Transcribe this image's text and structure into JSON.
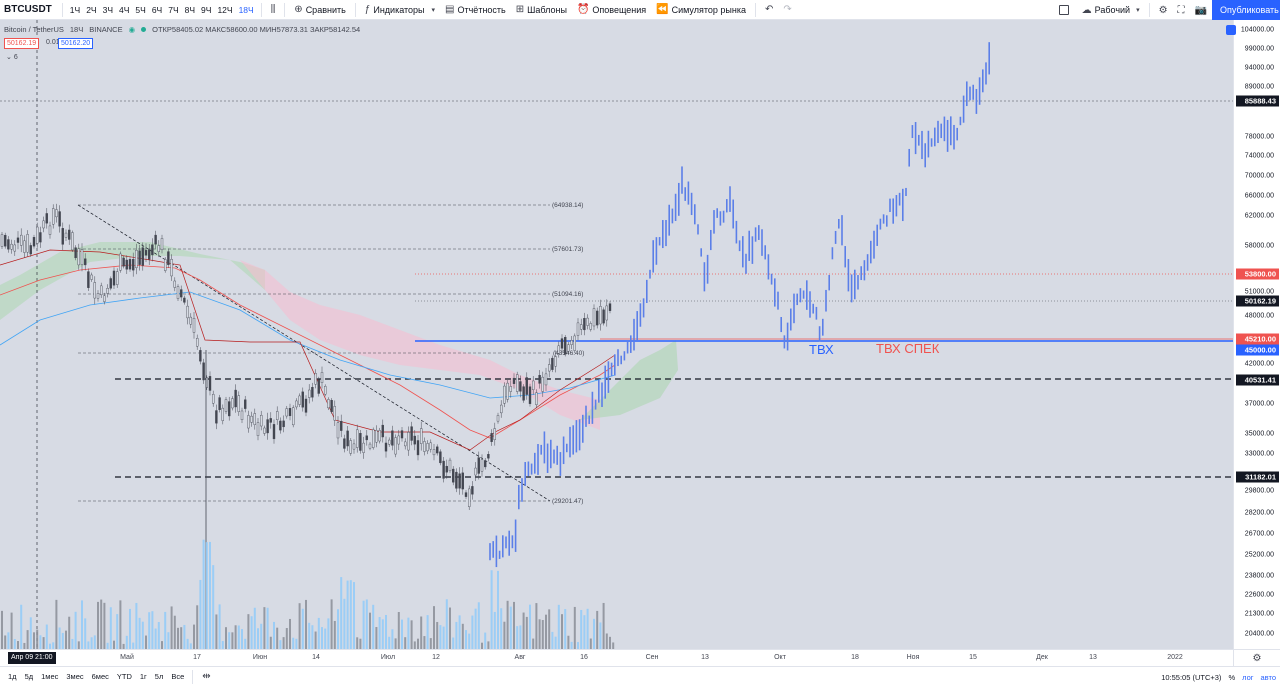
{
  "toolbar": {
    "symbol": "BTCUSDT",
    "timeframes": [
      {
        "label": "1Ч",
        "active": false
      },
      {
        "label": "2Ч",
        "active": false
      },
      {
        "label": "3Ч",
        "active": false
      },
      {
        "label": "4Ч",
        "active": false
      },
      {
        "label": "5Ч",
        "active": false
      },
      {
        "label": "6Ч",
        "active": false
      },
      {
        "label": "7Ч",
        "active": false
      },
      {
        "label": "8Ч",
        "active": false
      },
      {
        "label": "9Ч",
        "active": false
      },
      {
        "label": "12Ч",
        "active": false
      },
      {
        "label": "18Ч",
        "active": true
      }
    ],
    "compare_label": "Сравнить",
    "indicators_label": "Индикаторы",
    "reports_label": "Отчётность",
    "templates_label": "Шаблоны",
    "alerts_label": "Оповещения",
    "replay_label": "Симулятор рынка",
    "layout_label": "Рабочий",
    "publish_label": "Опубликовать"
  },
  "legend": {
    "title": "Bitcoin / TetherUS",
    "interval": "18Ч",
    "exchange": "BINANCE",
    "ohlc": "ОТКР58405.02 МАКС58600.00 МИН57873.31 ЗАКР58142.54",
    "sell_price": "50162.19",
    "spread": "0.01",
    "buy_price": "50162.20",
    "collapsed_count": "6"
  },
  "annotations": {
    "tvx": "ТВХ",
    "tvx_spec": "ТВХ СПЕК",
    "fib_levels": [
      "(64938.14)",
      "(57601.73)",
      "(51094.16)",
      "(43546.40)",
      "(29201.47)"
    ]
  },
  "price_axis": {
    "ticks": [
      "104000.00",
      "99000.00",
      "94000.00",
      "89000.00",
      "84000.00",
      "78000.00",
      "74000.00",
      "70000.00",
      "66000.00",
      "62000.00",
      "58000.00",
      "55000.00",
      "51000.00",
      "48000.00",
      "42000.00",
      "39000.00",
      "37000.00",
      "35000.00",
      "33000.00",
      "29800.00",
      "28200.00",
      "26700.00",
      "25200.00",
      "23800.00",
      "22600.00",
      "21300.00",
      "20400.00"
    ],
    "tags": [
      {
        "label": "85888.43",
        "color": "#131722",
        "bg": "#131722",
        "fg": "#ffffff"
      },
      {
        "label": "53800.00",
        "color": "#ef5350",
        "bg": "#ef5350",
        "fg": "#ffffff"
      },
      {
        "label": "50162.19",
        "color": "#131722",
        "bg": "#131722",
        "fg": "#ffffff"
      },
      {
        "label": "45210.00",
        "color": "#ef5350",
        "bg": "#ef5350",
        "fg": "#ffffff"
      },
      {
        "label": "45000.00",
        "color": "#2962ff",
        "bg": "#2962ff",
        "fg": "#ffffff"
      },
      {
        "label": "40531.41",
        "color": "#131722",
        "bg": "#131722",
        "fg": "#ffffff"
      },
      {
        "label": "31182.01",
        "color": "#131722",
        "bg": "#131722",
        "fg": "#ffffff"
      }
    ]
  },
  "time_axis": {
    "crosshair_label": "Апр 09   21:00",
    "ticks": [
      "Май",
      "17",
      "Июн",
      "14",
      "Июл",
      "12",
      "Авг",
      "16",
      "Сен",
      "13",
      "Окт",
      "18",
      "Ноя",
      "15",
      "Дек",
      "13",
      "2022"
    ]
  },
  "bottom_bar": {
    "ranges": [
      "1д",
      "5д",
      "1мес",
      "3мес",
      "6мес",
      "YTD",
      "1г",
      "5л",
      "Все"
    ],
    "clock": "10:55:05 (UTC+3)",
    "percent": "%",
    "log": "лог",
    "auto": "авто"
  },
  "colors": {
    "up": "#2962ff",
    "down": "#434651",
    "accent": "#2962ff",
    "red_level": "#ef5350"
  }
}
